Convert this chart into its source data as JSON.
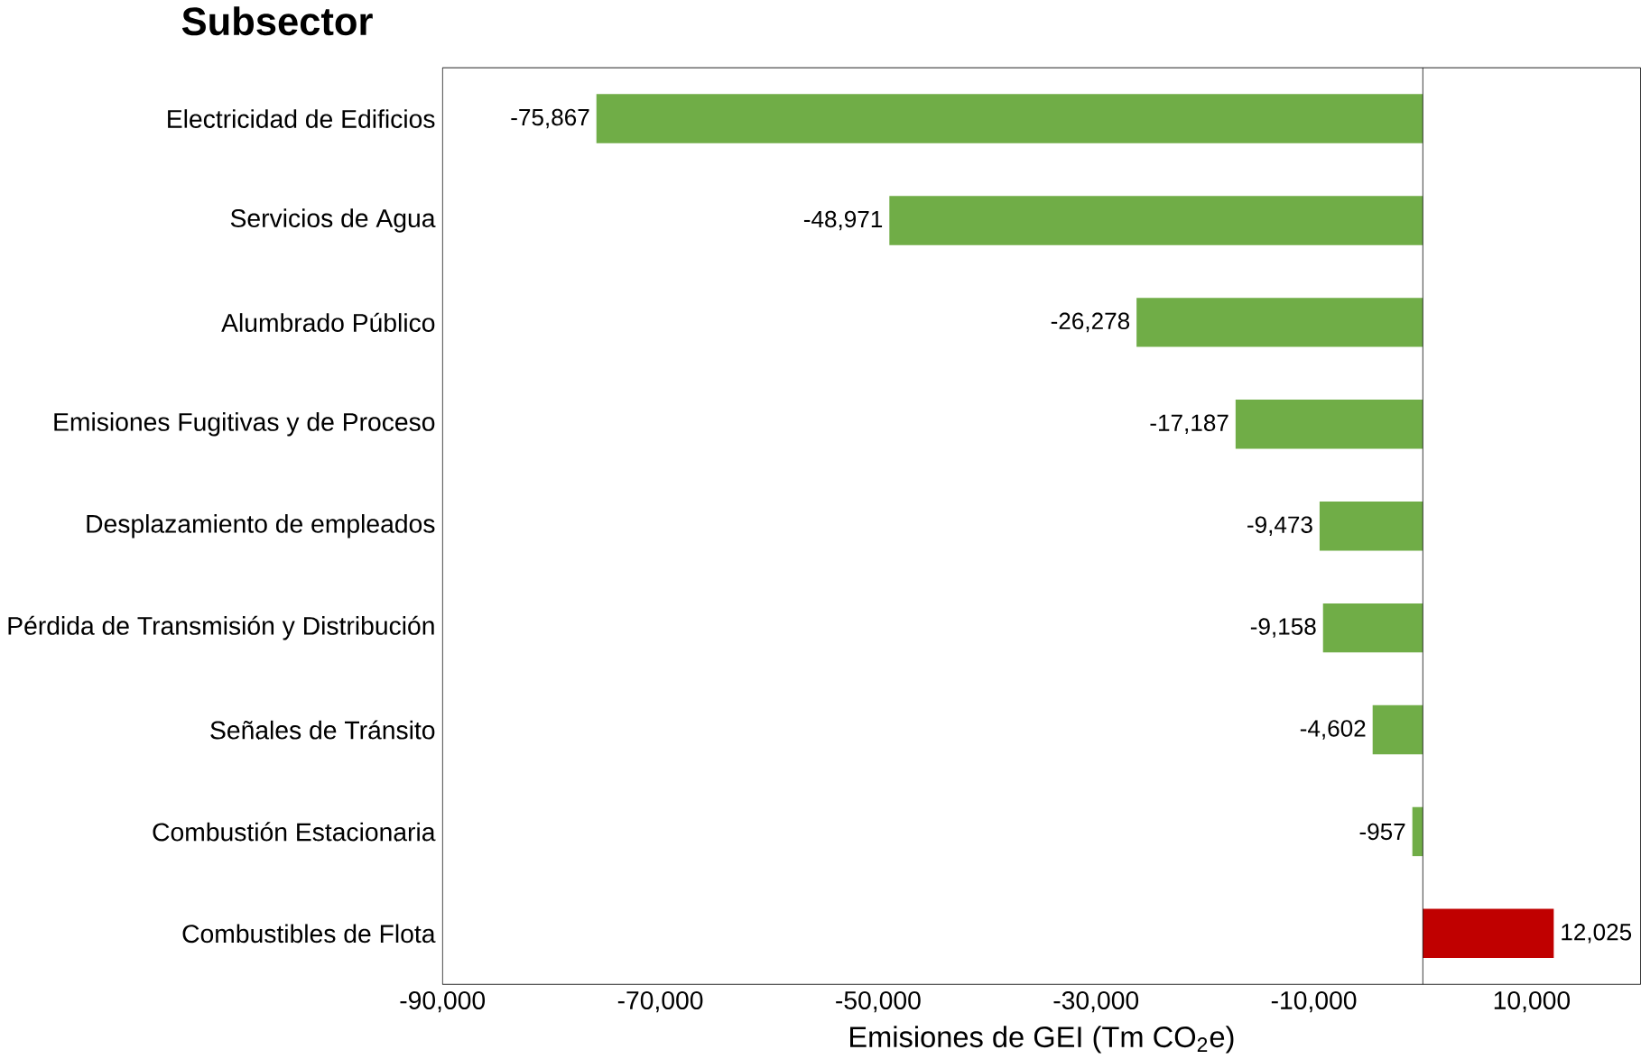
{
  "chart_data": {
    "type": "bar",
    "orientation": "horizontal",
    "title": "Subsector",
    "xlabel": "Emisiones de GEI (Tm CO$_{2}$e)",
    "categories": [
      "Electricidad de Edificios",
      "Servicios de Agua",
      "Alumbrado Público",
      "Emisiones Fugitivas y de Proceso",
      "Desplazamiento de empleados",
      "Pérdida de Transmisión y Distribución",
      "Señales de Tránsito",
      "Combustión Estacionaria",
      "Combustibles de Flota"
    ],
    "values": [
      -75867,
      -48971,
      -26278,
      -17187,
      -9473,
      -9158,
      -4602,
      -957,
      12025
    ],
    "value_labels": [
      "-75,867",
      "-48,971",
      "-26,278",
      "-17,187",
      "-9,473",
      "-9,158",
      "-4,602",
      "-957",
      "12,025"
    ],
    "colors": [
      "#70ad47",
      "#70ad47",
      "#70ad47",
      "#70ad47",
      "#70ad47",
      "#70ad47",
      "#70ad47",
      "#70ad47",
      "#c00000"
    ],
    "xlim": [
      -90000,
      20000
    ],
    "xticks": [
      {
        "value": -90000,
        "label": "-90,000"
      },
      {
        "value": -70000,
        "label": "-70,000"
      },
      {
        "value": -50000,
        "label": "-50,000"
      },
      {
        "value": -30000,
        "label": "-30,000"
      },
      {
        "value": -10000,
        "label": "-10,000"
      },
      {
        "value": 10000,
        "label": "10,000"
      }
    ],
    "ref_lines": [
      {
        "axis": "x",
        "value": 0,
        "color": "#000000"
      }
    ]
  }
}
